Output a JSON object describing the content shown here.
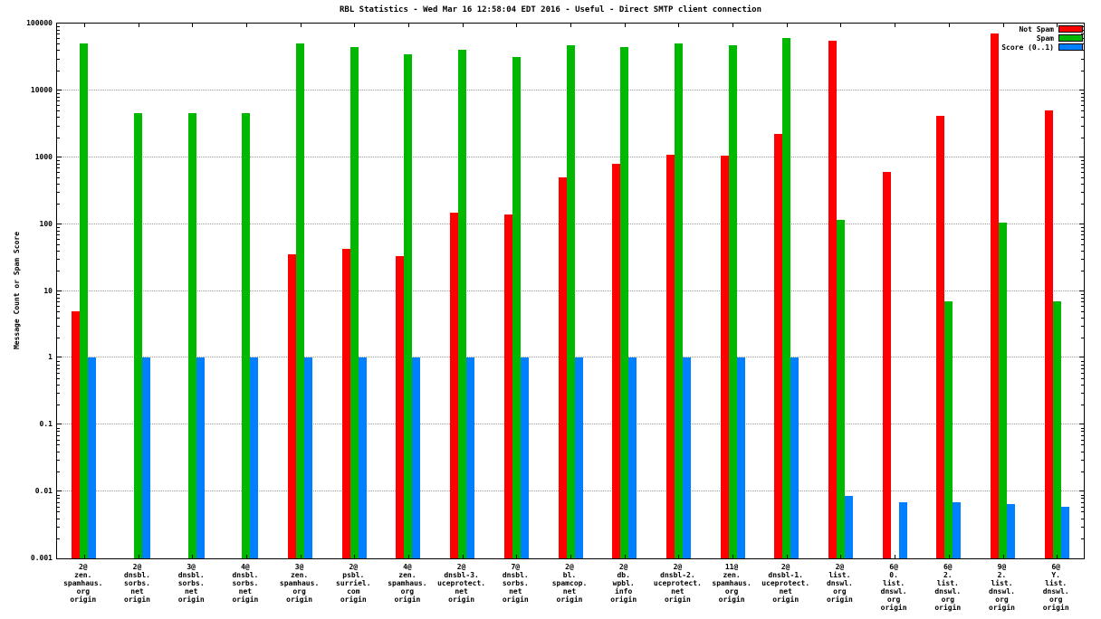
{
  "chart_data": {
    "type": "bar",
    "title": "RBL Statistics - Wed Mar 16 12:58:04 EDT 2016 - Useful - Direct SMTP client connection",
    "ylabel": "Message Count or Spam Score",
    "yscale": "log",
    "ylim": [
      0.001,
      100000
    ],
    "ytick_labels": [
      "100000",
      "10000",
      "1000",
      "100",
      "10",
      "1",
      "0.1",
      "0.01",
      "0.001"
    ],
    "grid": "horizontal-dotted",
    "legend_position": "top-right",
    "categories": [
      [
        "2@",
        "zen.",
        "spamhaus.",
        "org",
        "origin"
      ],
      [
        "2@",
        "dnsbl.",
        "sorbs.",
        "net",
        "origin"
      ],
      [
        "3@",
        "dnsbl.",
        "sorbs.",
        "net",
        "origin"
      ],
      [
        "4@",
        "dnsbl.",
        "sorbs.",
        "net",
        "origin"
      ],
      [
        "3@",
        "zen.",
        "spamhaus.",
        "org",
        "origin"
      ],
      [
        "2@",
        "psbl.",
        "surriel.",
        "com",
        "origin"
      ],
      [
        "4@",
        "zen.",
        "spamhaus.",
        "org",
        "origin"
      ],
      [
        "2@",
        "dnsbl-3.",
        "uceprotect.",
        "net",
        "origin"
      ],
      [
        "7@",
        "dnsbl.",
        "sorbs.",
        "net",
        "origin"
      ],
      [
        "2@",
        "bl.",
        "spamcop.",
        "net",
        "origin"
      ],
      [
        "2@",
        "db.",
        "wpbl.",
        "info",
        "origin"
      ],
      [
        "2@",
        "dnsbl-2.",
        "uceprotect.",
        "net",
        "origin"
      ],
      [
        "11@",
        "zen.",
        "spamhaus.",
        "org",
        "origin"
      ],
      [
        "2@",
        "dnsbl-1.",
        "uceprotect.",
        "net",
        "origin"
      ],
      [
        "2@",
        "list.",
        "dnswl.",
        "org",
        "origin"
      ],
      [
        "6@",
        "0.",
        "list.",
        "dnswl.",
        "org",
        "origin"
      ],
      [
        "6@",
        "2.",
        "list.",
        "dnswl.",
        "org",
        "origin"
      ],
      [
        "9@",
        "2.",
        "list.",
        "dnswl.",
        "org",
        "origin"
      ],
      [
        "6@",
        "Y.",
        "list.",
        "dnswl.",
        "org",
        "origin"
      ]
    ],
    "series": [
      {
        "name": "Not Spam",
        "color": "#ff0000",
        "values": [
          5,
          null,
          null,
          null,
          35,
          42,
          33,
          150,
          140,
          500,
          800,
          1100,
          1050,
          2200,
          55000,
          600,
          4200,
          70000,
          5000
        ]
      },
      {
        "name": "Spam",
        "color": "#00b800",
        "values": [
          50000,
          4500,
          4500,
          4500,
          50000,
          45000,
          35000,
          40000,
          32000,
          48000,
          45000,
          50000,
          48000,
          60000,
          115,
          null,
          7,
          105,
          7
        ]
      },
      {
        "name": "Score (0..1)",
        "color": "#0080ff",
        "values": [
          1,
          1,
          1,
          1,
          1,
          1,
          1,
          1,
          1,
          1,
          1,
          1,
          1,
          1,
          0.0085,
          0.007,
          0.007,
          0.0065,
          0.006
        ]
      }
    ]
  }
}
